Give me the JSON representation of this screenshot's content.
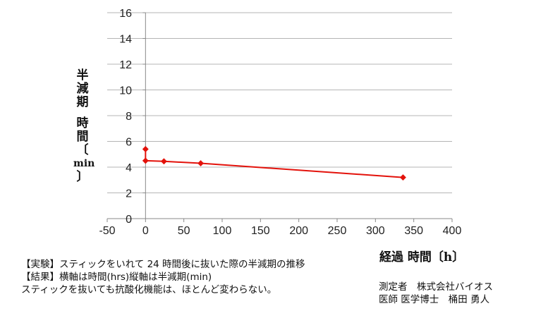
{
  "chart_data": {
    "type": "line",
    "x": [
      0,
      0,
      24,
      72,
      336
    ],
    "series": [
      {
        "values": [
          5.4,
          4.5,
          4.45,
          4.3,
          3.2
        ],
        "color": "#e3120b"
      }
    ],
    "xlim": [
      -50,
      400
    ],
    "ylim": [
      0,
      16
    ],
    "xticks": [
      "-50",
      "0",
      "50",
      "100",
      "150",
      "200",
      "250",
      "300",
      "350",
      "400"
    ],
    "yticks": [
      "0",
      "2",
      "4",
      "6",
      "8",
      "10",
      "12",
      "14",
      "16"
    ],
    "xlabel": "経過 時間〔h〕",
    "ylabel": [
      "半",
      "減",
      "期",
      "",
      "時",
      "間",
      "〔",
      "min",
      "〕"
    ],
    "grid": true,
    "legend": "none"
  },
  "notes": [
    "【実験】スティックをいれて 24 時間後に抜いた際の半減期の推移",
    "【結果】横軸は時間(hrs)縦軸は半減期(min)",
    "スティックを抜いても抗酸化機能は、ほとんど変わらない。"
  ],
  "credit": [
    "測定者　株式会社バイオス",
    "医師 医学博士　桶田 勇人"
  ]
}
